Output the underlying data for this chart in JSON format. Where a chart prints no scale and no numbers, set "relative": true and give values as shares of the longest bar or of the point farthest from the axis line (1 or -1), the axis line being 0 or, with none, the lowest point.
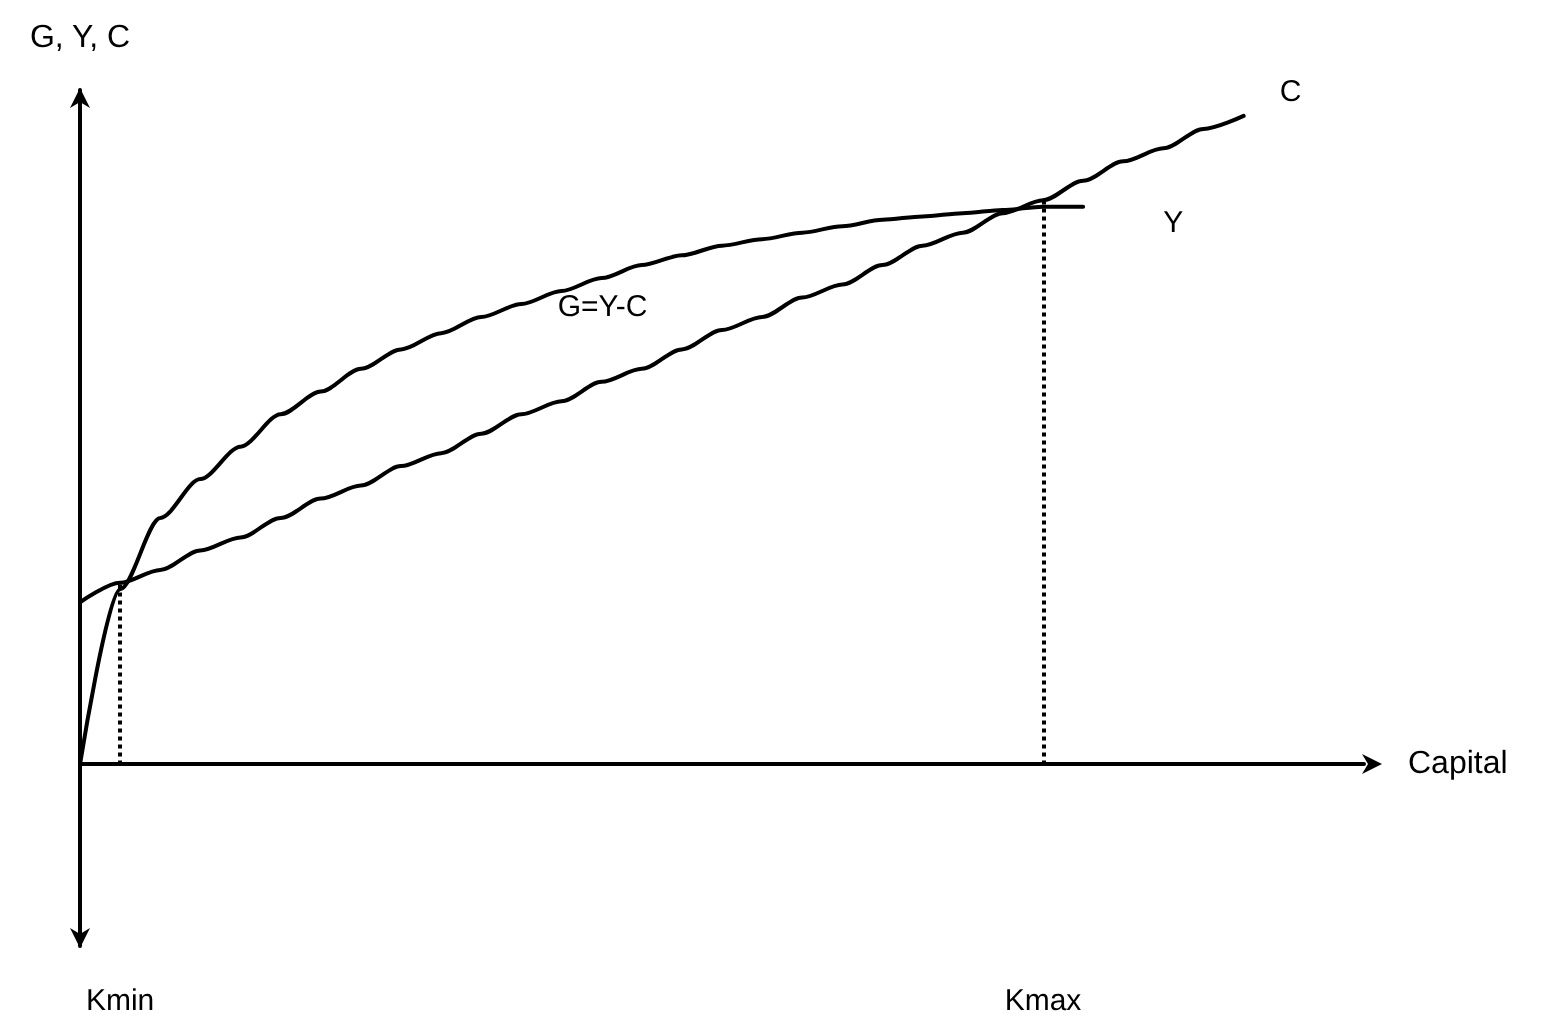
{
  "chart_data": {
    "type": "line",
    "relative": true,
    "xlabel": "Capital",
    "ylabel": "G, Y, C",
    "categories": [
      null,
      "Kmin",
      null,
      null,
      null,
      null,
      null,
      null,
      null,
      null,
      null,
      null,
      null,
      null,
      null,
      null,
      null,
      null,
      null,
      null,
      null,
      null,
      null,
      null,
      "Kmax",
      null,
      null,
      null,
      null,
      null,
      null,
      null,
      null
    ],
    "series": [
      {
        "name": "Y",
        "color": "#000000",
        "values": [
          0,
          0.27,
          0.38,
          0.44,
          0.49,
          0.54,
          0.575,
          0.61,
          0.64,
          0.665,
          0.69,
          0.71,
          0.73,
          0.75,
          0.77,
          0.785,
          0.8,
          0.81,
          0.82,
          0.83,
          0.84,
          0.845,
          0.85,
          0.855,
          0.86,
          0.86,
          null,
          null,
          null,
          null,
          null,
          null,
          null
        ]
      },
      {
        "name": "C",
        "color": "#000000",
        "values": [
          0.25,
          0.28,
          0.3,
          0.33,
          0.35,
          0.38,
          0.41,
          0.43,
          0.46,
          0.48,
          0.51,
          0.54,
          0.56,
          0.59,
          0.61,
          0.64,
          0.67,
          0.69,
          0.72,
          0.74,
          0.77,
          0.8,
          0.82,
          0.85,
          0.87,
          0.9,
          0.93,
          0.95,
          0.98,
          1,
          null,
          null,
          null
        ]
      }
    ],
    "ref_lines": [
      {
        "axis": "x",
        "value": "Kmin",
        "line_style": "dotted",
        "color": "#000000"
      },
      {
        "axis": "x",
        "value": "Kmax",
        "line_style": "dotted",
        "color": "#000000"
      }
    ],
    "annotations": [
      "G=Y-C"
    ],
    "grid": false,
    "legend": false,
    "marker": "none",
    "line_style": "solid"
  }
}
